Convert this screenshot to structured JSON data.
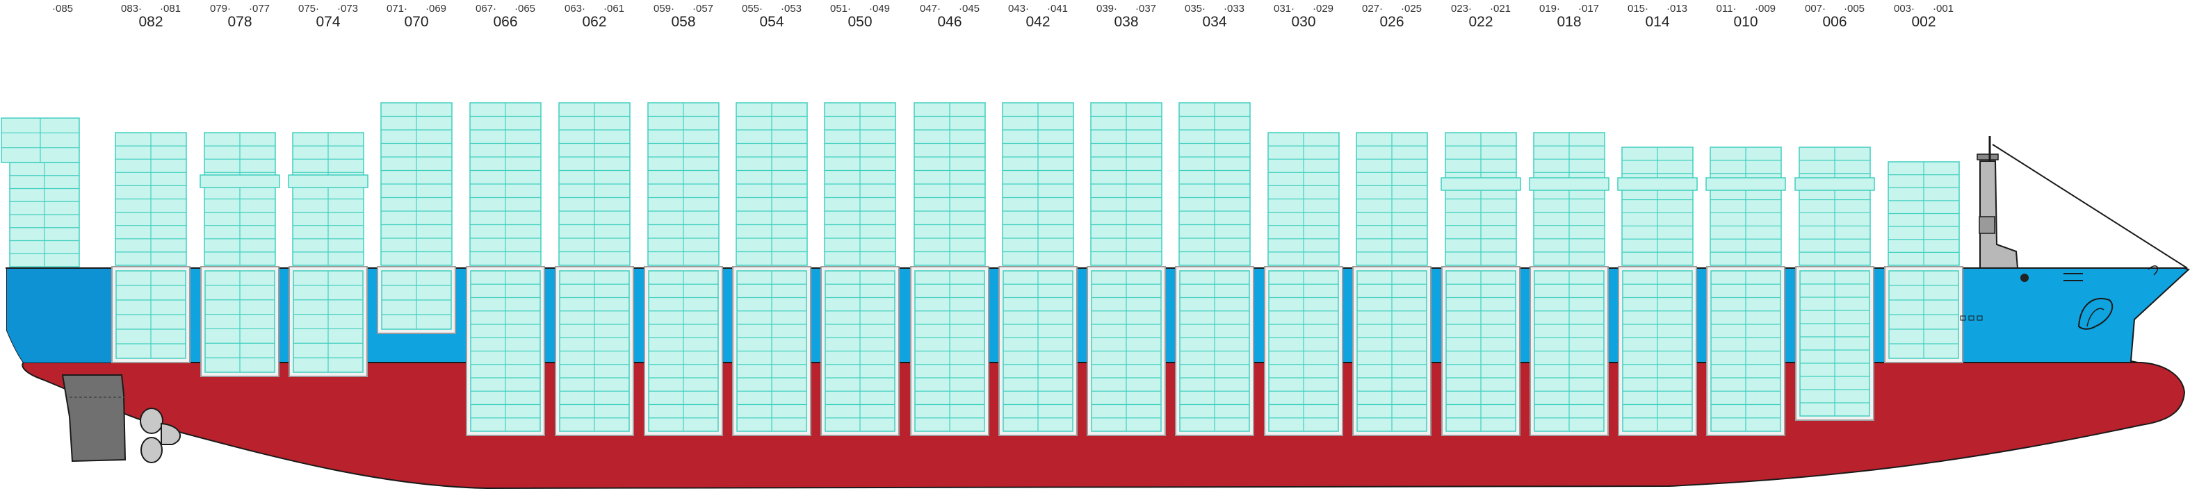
{
  "colors": {
    "hull_red": "#b9222c",
    "hull_blue": "#0fa3df",
    "stern_blue": "#0f92d4",
    "container_fill": "#c7f4ec",
    "container_line": "#41cfc0",
    "hatch_fill": "#f2f2f2",
    "superstructure": "#b8b8b8",
    "rudder": "#707070",
    "outline": "#1a1a1a"
  },
  "bays": [
    {
      "left": "083",
      "right": "081",
      "main": "082"
    },
    {
      "left": "079",
      "right": "077",
      "main": "078"
    },
    {
      "left": "075",
      "right": "073",
      "main": "074"
    },
    {
      "left": "071",
      "right": "069",
      "main": "070"
    },
    {
      "left": "067",
      "right": "065",
      "main": "066"
    },
    {
      "left": "063",
      "right": "061",
      "main": "062"
    },
    {
      "left": "059",
      "right": "057",
      "main": "058"
    },
    {
      "left": "055",
      "right": "053",
      "main": "054"
    },
    {
      "left": "051",
      "right": "049",
      "main": "050"
    },
    {
      "left": "047",
      "right": "045",
      "main": "046"
    },
    {
      "left": "043",
      "right": "041",
      "main": "042"
    },
    {
      "left": "039",
      "right": "037",
      "main": "038"
    },
    {
      "left": "035",
      "right": "033",
      "main": "034"
    },
    {
      "left": "031",
      "right": "029",
      "main": "030"
    },
    {
      "left": "027",
      "right": "025",
      "main": "026"
    },
    {
      "left": "023",
      "right": "021",
      "main": "022"
    },
    {
      "left": "019",
      "right": "017",
      "main": "018"
    },
    {
      "left": "015",
      "right": "013",
      "main": "014"
    },
    {
      "left": "011",
      "right": "009",
      "main": "010"
    },
    {
      "left": "007",
      "right": "005",
      "main": "006"
    },
    {
      "left": "003",
      "right": "001",
      "main": "002"
    }
  ],
  "aft_bay": {
    "label": "085"
  },
  "icons": [
    "propeller-icon",
    "rudder-icon",
    "bulbous-bow-logo-icon",
    "funnel-icon",
    "mast-icon"
  ]
}
